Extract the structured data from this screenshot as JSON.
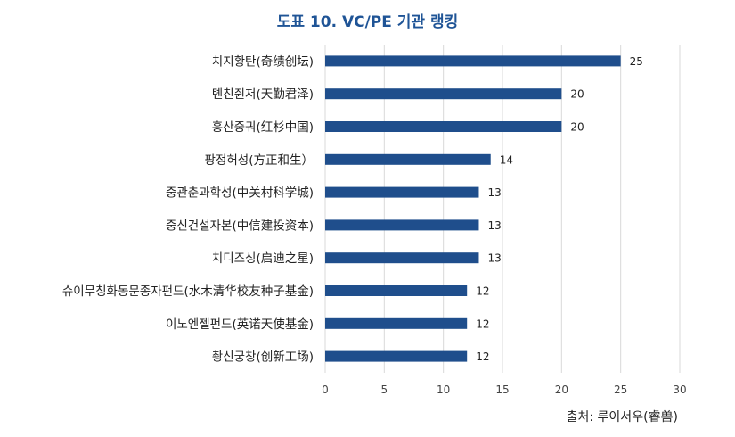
{
  "title": "도표 10. VC/PE 기관 랭킹",
  "source": "출처: 루이서우(睿兽)",
  "colors": {
    "bar": "#1f4e8c",
    "grid": "#d9d9d9",
    "title": "#1f5496"
  },
  "chart_data": {
    "type": "bar",
    "orientation": "horizontal",
    "categories": [
      "치지황탄(奇绩创坛)",
      "톈친쥔저(天勤君泽)",
      "훙산중궈(红杉中国)",
      "팡정허성(方正和生）",
      "중관춘과학성(中关村科学城)",
      "중신건설자본(中信建投资本)",
      "치디즈싱(启迪之星)",
      "슈이무칭화동문종자펀드(水木清华校友种子基金)",
      "이노엔젤펀드(英诺天使基金)",
      "촹신궁창(创新工场)"
    ],
    "values": [
      25,
      20,
      20,
      14,
      13,
      13,
      13,
      12,
      12,
      12
    ],
    "xlim": [
      0,
      30
    ],
    "xticks": [
      "0",
      "5",
      "10",
      "15",
      "20",
      "25",
      "30"
    ],
    "grid": "vertical",
    "data_labels": true
  }
}
